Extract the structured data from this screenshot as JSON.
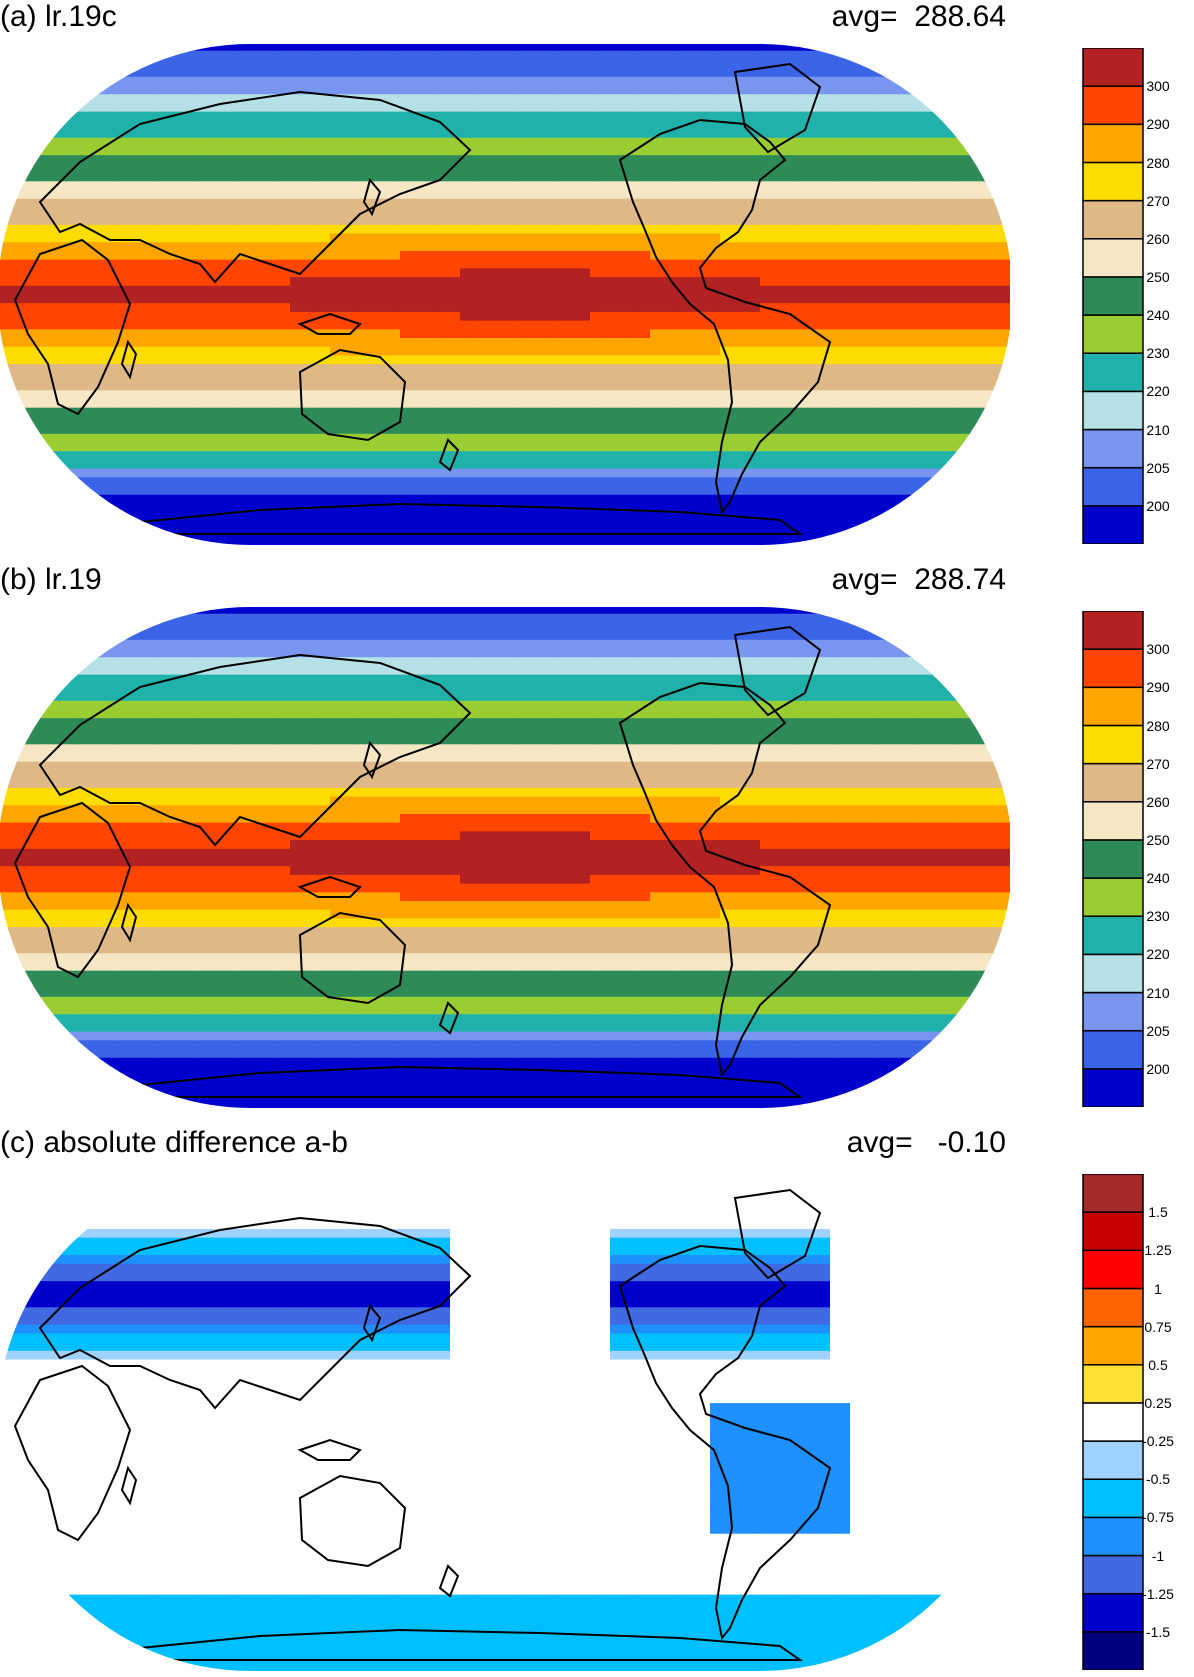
{
  "panels": [
    {
      "id": "a",
      "title": "(a) lr.19c",
      "avg_label": "avg=  288.64",
      "field": "absolute",
      "colorbar": {
        "colors": [
          "#0000cc",
          "#3c64e6",
          "#7896f0",
          "#b4e0e6",
          "#20b2aa",
          "#9acd32",
          "#2e8b57",
          "#f5e6c4",
          "#deb887",
          "#ffdc00",
          "#ffa500",
          "#ff4500",
          "#b22222"
        ],
        "tick_labels": [
          "200",
          "205",
          "210",
          "220",
          "230",
          "240",
          "250",
          "260",
          "270",
          "280",
          "290",
          "300"
        ]
      }
    },
    {
      "id": "b",
      "title": "(b) lr.19",
      "avg_label": "avg=  288.74",
      "field": "absolute",
      "colorbar": {
        "colors": [
          "#0000cc",
          "#3c64e6",
          "#7896f0",
          "#b4e0e6",
          "#20b2aa",
          "#9acd32",
          "#2e8b57",
          "#f5e6c4",
          "#deb887",
          "#ffdc00",
          "#ffa500",
          "#ff4500",
          "#b22222"
        ],
        "tick_labels": [
          "200",
          "205",
          "210",
          "220",
          "230",
          "240",
          "250",
          "260",
          "270",
          "280",
          "290",
          "300"
        ]
      }
    },
    {
      "id": "c",
      "title": "(c) absolute difference a-b",
      "avg_label": "avg=   -0.10",
      "field": "difference",
      "colorbar": {
        "colors": [
          "#000080",
          "#0000cd",
          "#4169e1",
          "#1e90ff",
          "#00bfff",
          "#a0d2ff",
          "#ffffff",
          "#ffe135",
          "#ffa500",
          "#ff6400",
          "#ff0000",
          "#c80000",
          "#a52a2a"
        ],
        "tick_labels": [
          "-1.5",
          "-1.25",
          "-1",
          "-0.75",
          "-0.5",
          "-0.25",
          "0.25",
          "0.5",
          "0.75",
          "1",
          "1.25",
          "1.5"
        ]
      }
    }
  ]
}
